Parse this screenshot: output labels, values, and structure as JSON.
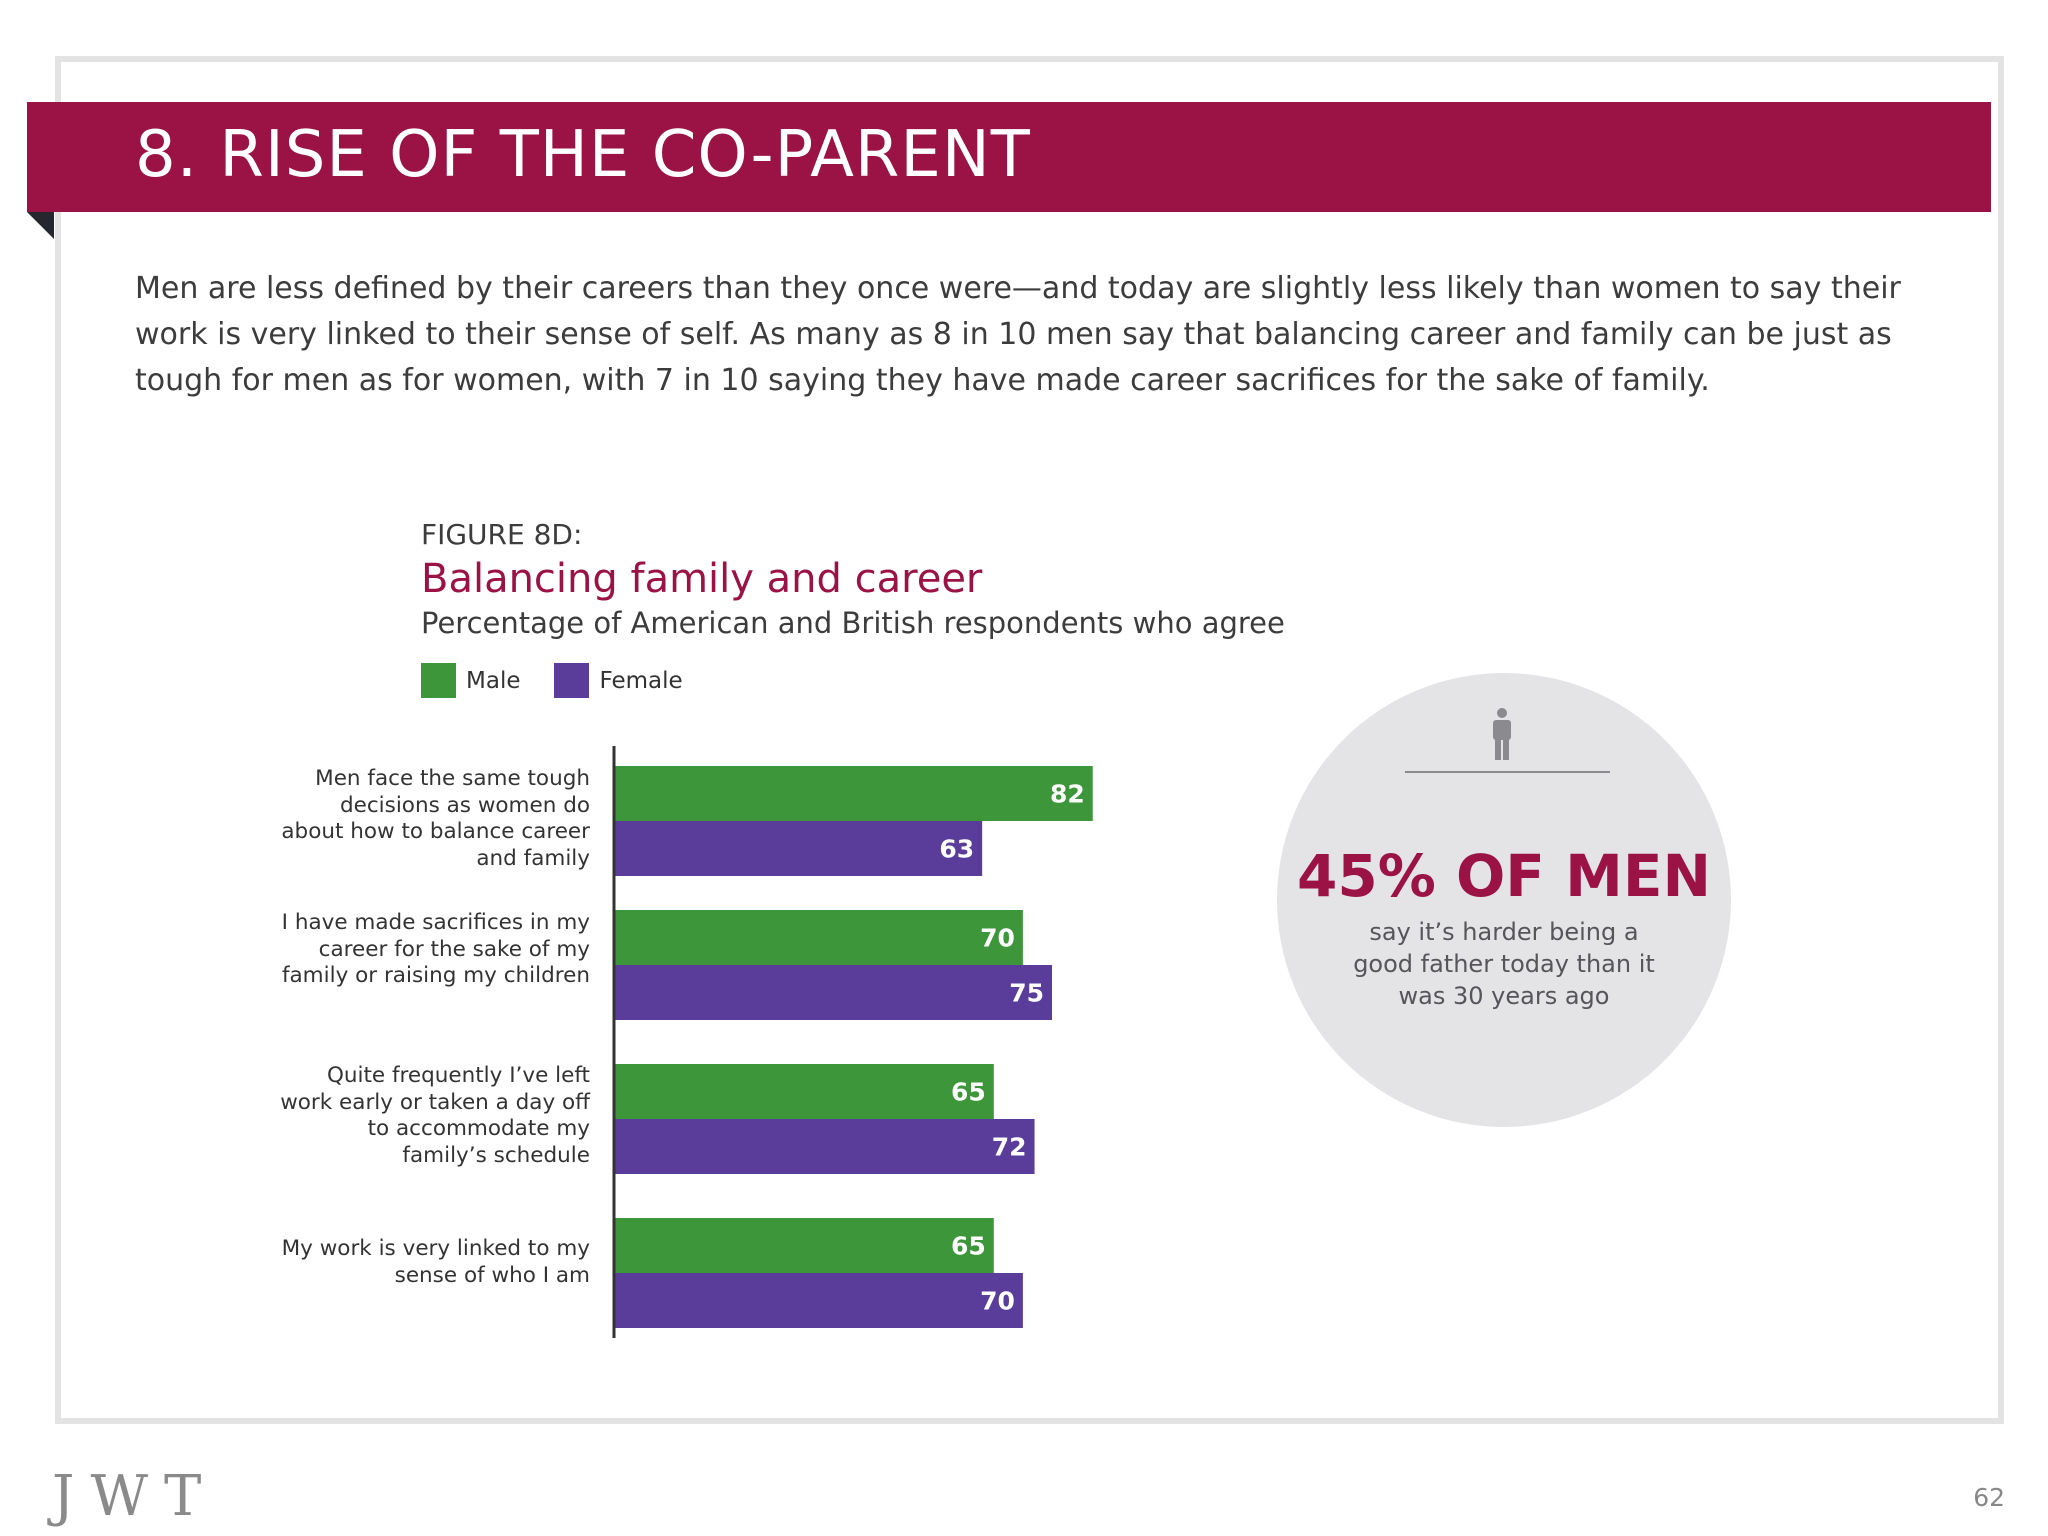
{
  "header": {
    "title": "8. RISE OF THE CO-PARENT"
  },
  "intro": {
    "text": "Men are less defined by their careers than they once were—and today are slightly less likely than women to say their work is very linked to their sense of self. As many as 8 in 10 men say that balancing career and family can be just as tough for men as for women, with 7 in 10 saying they have made career sacrifices for the sake of family."
  },
  "figure": {
    "label": "FIGURE 8D:",
    "title": "Balancing family and career",
    "subtitle": "Percentage of American and British respondents who agree"
  },
  "legend": {
    "male": "Male",
    "female": "Female"
  },
  "colors": {
    "brand": "#9b1245",
    "male": "#3d963a",
    "female": "#5a3d9a",
    "axis": "#333333",
    "circle": "#e4e4e7"
  },
  "chart_data": {
    "type": "bar",
    "orientation": "horizontal",
    "title": "Balancing family and career",
    "subtitle": "Percentage of American and British respondents who agree",
    "categories": [
      "Men face the same tough decisions as women do about how to balance career and family",
      "I have made sacrifices in my career for the sake of my family or raising my children",
      "Quite frequently I’ve left work early or taken a day off to accommodate my family’s schedule",
      "My work is very linked to my sense of who I am"
    ],
    "series": [
      {
        "name": "Male",
        "values": [
          82,
          70,
          65,
          65
        ]
      },
      {
        "name": "Female",
        "values": [
          63,
          75,
          72,
          70
        ]
      }
    ],
    "xlim": [
      0,
      100
    ],
    "grid": false,
    "legend": "top-left",
    "data_labels": true
  },
  "callout": {
    "icon": "man-icon",
    "headline": "45% OF MEN",
    "caption": "say it’s harder being a good father today than it was 30 years ago"
  },
  "footer": {
    "logo": "JWT",
    "page_number": "62"
  }
}
